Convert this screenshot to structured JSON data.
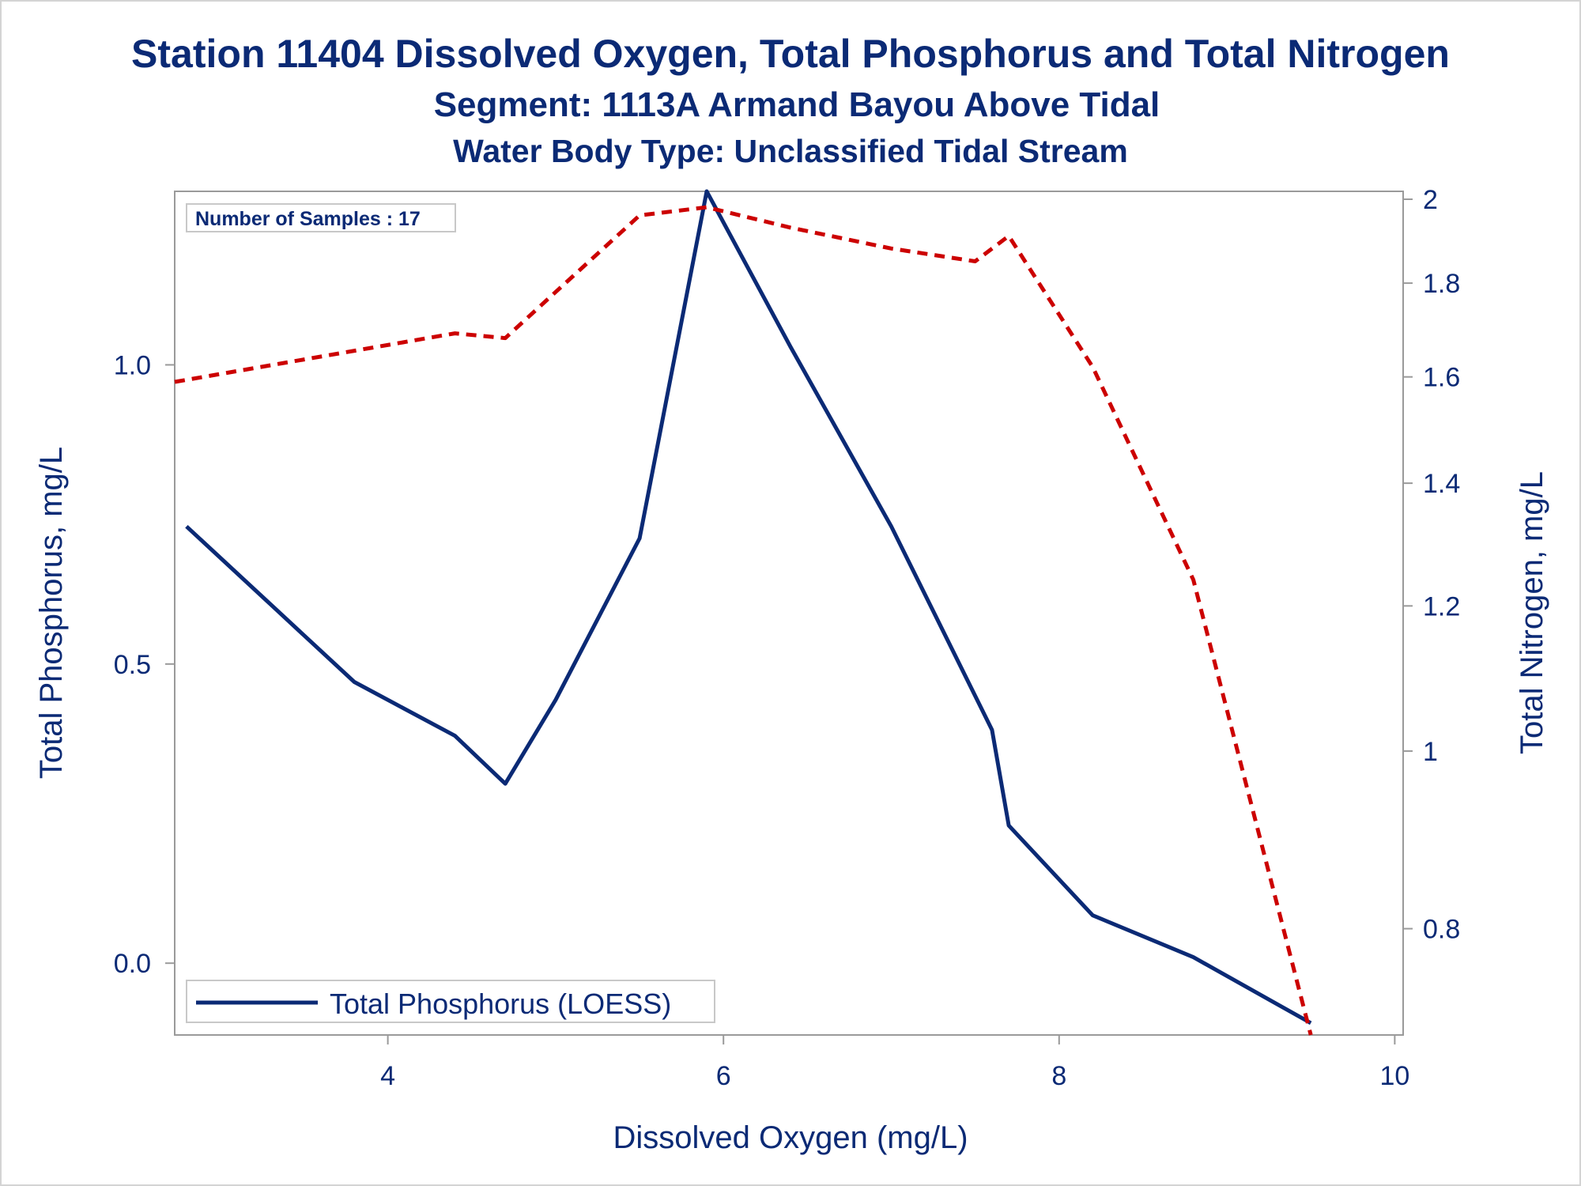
{
  "chart_data": {
    "type": "line",
    "title": "Station 11404  Dissolved Oxygen, Total Phosphorus and Total Nitrogen",
    "subtitle": "Segment: 1113A  Armand Bayou Above Tidal",
    "subtitle2": "Water Body Type: Unclassified Tidal Stream",
    "xlabel": "Dissolved Oxygen (mg/L)",
    "ylabel_left": "Total Phosphorus, mg/L",
    "ylabel_right": "Total Nitrogen, mg/L",
    "xlim": [
      2.73,
      10.05
    ],
    "ylim_left": [
      -0.12,
      1.29
    ],
    "ylim_right": [
      0.7,
      2.02
    ],
    "y_right_scale": "log",
    "x_ticks": [
      "4",
      "6",
      "8",
      "10"
    ],
    "y_left_ticks": [
      "0.0",
      "0.5",
      "1.0"
    ],
    "y_right_ticks": [
      "0.8",
      "1",
      "1.2",
      "1.4",
      "1.6",
      "1.8",
      "2"
    ],
    "annotation": "Number of Samples : 17",
    "legend": {
      "position": "bottom-left",
      "entries": [
        "Total Phosphorus (LOESS)"
      ]
    },
    "series": [
      {
        "name": "Total Phosphorus (LOESS)",
        "axis": "left",
        "color": "#0b2a75",
        "style": "solid",
        "x": [
          2.8,
          3.3,
          3.8,
          4.4,
          4.7,
          5.0,
          5.5,
          5.9,
          6.4,
          7.0,
          7.6,
          7.7,
          8.2,
          8.8,
          9.5
        ],
        "y": [
          0.73,
          0.6,
          0.47,
          0.38,
          0.3,
          0.44,
          0.71,
          1.29,
          1.03,
          0.73,
          0.39,
          0.23,
          0.08,
          0.01,
          -0.1
        ]
      },
      {
        "axis": "right",
        "color": "#cc0000",
        "style": "dashed",
        "x": [
          2.73,
          4.4,
          4.7,
          5.0,
          5.5,
          5.9,
          6.4,
          7.0,
          7.5,
          7.7,
          8.2,
          8.8,
          9.5
        ],
        "y": [
          1.59,
          1.69,
          1.68,
          1.78,
          1.96,
          1.98,
          1.93,
          1.88,
          1.85,
          1.91,
          1.62,
          1.24,
          0.7
        ]
      }
    ]
  }
}
